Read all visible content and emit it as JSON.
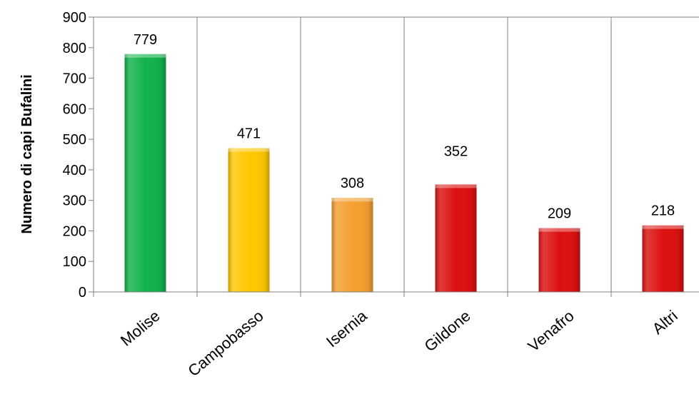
{
  "chart_data": {
    "type": "bar",
    "title": "",
    "xlabel": "",
    "ylabel": "Numero di capi Bufalini",
    "categories": [
      "Molise",
      "Campobasso",
      "Isernia",
      "Gildone",
      "Venafro",
      "Altri"
    ],
    "values": [
      779,
      471,
      308,
      352,
      209,
      218
    ],
    "data_labels": [
      "779",
      "471",
      "308",
      "352",
      "209",
      "218"
    ],
    "colors": [
      "#12b24a",
      "#ffc800",
      "#f5a030",
      "#dd1010",
      "#dd1010",
      "#dd1010"
    ],
    "ylim": [
      0,
      900
    ],
    "yticks": [
      0,
      100,
      200,
      300,
      400,
      500,
      600,
      700,
      800,
      900
    ],
    "ytick_labels": [
      "0",
      "100",
      "200",
      "300",
      "400",
      "500",
      "600",
      "700",
      "800",
      "900"
    ],
    "grid": "vertical",
    "legend": "none"
  }
}
